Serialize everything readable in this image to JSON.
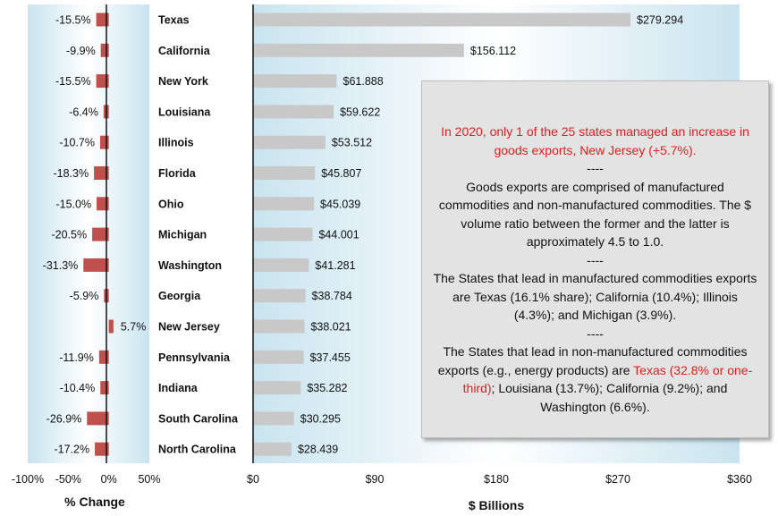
{
  "chart_data": {
    "type": "bar",
    "categories": [
      "Texas",
      "California",
      "New York",
      "Louisiana",
      "Illinois",
      "Florida",
      "Ohio",
      "Michigan",
      "Washington",
      "Georgia",
      "New Jersey",
      "Pennsylvania",
      "Indiana",
      "South Carolina",
      "North Carolina"
    ],
    "series": [
      {
        "name": "% Change",
        "values": [
          -15.5,
          -9.9,
          -15.5,
          -6.4,
          -10.7,
          -18.3,
          -15.0,
          -20.5,
          -31.3,
          -5.9,
          5.7,
          -11.9,
          -10.4,
          -26.9,
          -17.2
        ]
      },
      {
        "name": "$ Billions",
        "values": [
          279.294,
          156.112,
          61.888,
          59.622,
          53.512,
          45.807,
          45.039,
          44.001,
          41.281,
          38.784,
          38.021,
          37.455,
          35.282,
          30.295,
          28.439
        ]
      }
    ],
    "pct_labels": [
      "-15.5%",
      "-9.9%",
      "-15.5%",
      "-6.4%",
      "-10.7%",
      "-18.3%",
      "-15.0%",
      "-20.5%",
      "-31.3%",
      "-5.9%",
      "5.7%",
      "-11.9%",
      "-10.4%",
      "-26.9%",
      "-17.2%"
    ],
    "value_labels": [
      "$279.294",
      "$156.112",
      "$61.888",
      "$59.622",
      "$53.512",
      "$45.807",
      "$45.039",
      "$44.001",
      "$41.281",
      "$38.784",
      "$38.021",
      "$37.455",
      "$35.282",
      "$30.295",
      "$28.439"
    ],
    "pct_axis": {
      "label": "% Change",
      "ticks": [
        "-100%",
        "-50%",
        "0%",
        "50%"
      ],
      "range": [
        -100,
        50
      ]
    },
    "value_axis": {
      "label": "$ Billions",
      "ticks": [
        "$0",
        "$90",
        "$180",
        "$270",
        "$360"
      ],
      "range": [
        0,
        360
      ]
    },
    "colors": {
      "pct_bar": "#c0504d",
      "value_bar": "#c8c8c8",
      "panel_edge": "#c9e4ef",
      "panel_mid": "#ffffff"
    }
  },
  "note": {
    "p1": "In 2020, only 1 of the 25 states managed an increase in goods exports, New Jersey (+5.7%).",
    "sep1": "----",
    "p2": "Goods exports are comprised of manufactured commodities and non-manufactured commodities. The $ volume ratio between the former and the latter is approximately 4.5 to 1.0.",
    "sep2": "----",
    "p3": "The States that lead in manufactured commodities exports are Texas (16.1% share); California (10.4%); Illinois (4.3%); and Michigan (3.9%).",
    "sep3": "----",
    "p4_pre": "The States that lead in non-manufactured commodities exports (e.g., energy products) are ",
    "p4_red": "Texas (32.8% or one-third)",
    "p4_post": "; Louisiana (13.7%); California (9.2%); and Washington (6.6%)."
  }
}
